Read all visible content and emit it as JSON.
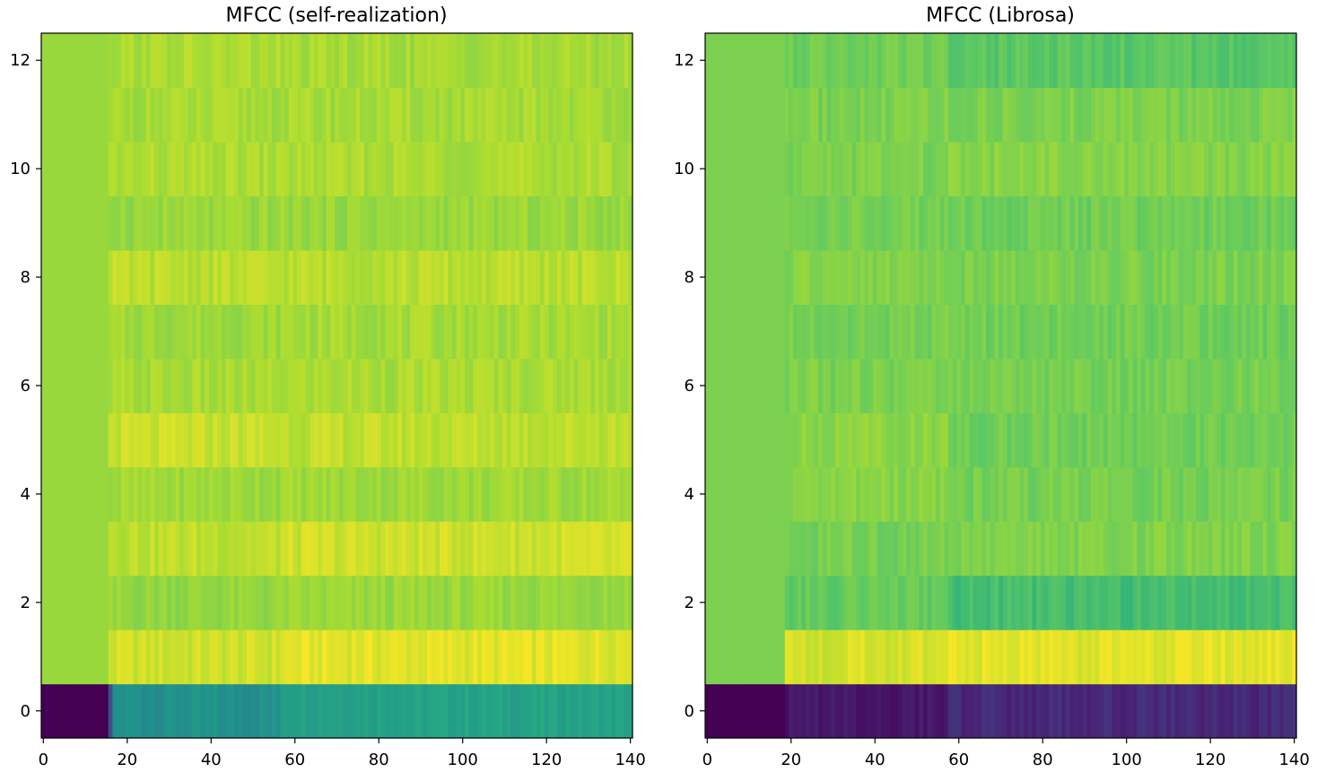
{
  "chart_data": [
    {
      "type": "heatmap",
      "title": "MFCC (self-realization)",
      "colormap": "viridis",
      "n_frames": 141,
      "n_coefficients": 13,
      "xlim": [
        -0.5,
        140.5
      ],
      "ylim": [
        -0.5,
        12.5
      ],
      "x_ticks": [
        0,
        20,
        40,
        60,
        80,
        100,
        120,
        140
      ],
      "y_ticks": [
        0,
        2,
        4,
        6,
        8,
        10,
        12
      ],
      "x_tick_labels": [
        "0",
        "20",
        "40",
        "60",
        "80",
        "100",
        "120",
        "140"
      ],
      "y_tick_labels": [
        "0",
        "2",
        "4",
        "6",
        "8",
        "10",
        "12"
      ],
      "silence_end_frame": 16,
      "feature_change_frame": 57,
      "row_levels_silence": [
        0.0,
        0.85,
        0.85,
        0.85,
        0.85,
        0.85,
        0.85,
        0.85,
        0.85,
        0.85,
        0.85,
        0.85,
        0.85
      ],
      "row_levels_speech_a": [
        0.5,
        0.93,
        0.84,
        0.91,
        0.86,
        0.92,
        0.87,
        0.86,
        0.9,
        0.85,
        0.88,
        0.87,
        0.88
      ],
      "row_levels_speech_b": [
        0.58,
        0.96,
        0.85,
        0.93,
        0.86,
        0.91,
        0.88,
        0.87,
        0.9,
        0.85,
        0.88,
        0.87,
        0.87
      ],
      "variation": 0.035
    },
    {
      "type": "heatmap",
      "title": "MFCC (Librosa)",
      "colormap": "viridis",
      "n_frames": 141,
      "n_coefficients": 13,
      "xlim": [
        -0.5,
        140.5
      ],
      "ylim": [
        -0.5,
        12.5
      ],
      "x_ticks": [
        0,
        20,
        40,
        60,
        80,
        100,
        120,
        140
      ],
      "y_ticks": [
        0,
        2,
        4,
        6,
        8,
        10,
        12
      ],
      "x_tick_labels": [
        "0",
        "20",
        "40",
        "60",
        "80",
        "100",
        "120",
        "140"
      ],
      "y_tick_labels": [
        "0",
        "2",
        "4",
        "6",
        "8",
        "10",
        "12"
      ],
      "silence_end_frame": 19,
      "feature_change_frame": 58,
      "row_levels_silence": [
        0.0,
        0.8,
        0.8,
        0.8,
        0.8,
        0.8,
        0.8,
        0.8,
        0.8,
        0.8,
        0.8,
        0.8,
        0.8
      ],
      "row_levels_speech_a": [
        0.08,
        0.94,
        0.76,
        0.79,
        0.82,
        0.83,
        0.8,
        0.79,
        0.81,
        0.79,
        0.8,
        0.8,
        0.78
      ],
      "row_levels_speech_b": [
        0.14,
        0.96,
        0.7,
        0.81,
        0.79,
        0.78,
        0.79,
        0.78,
        0.8,
        0.78,
        0.82,
        0.8,
        0.74
      ],
      "variation": 0.035
    }
  ]
}
